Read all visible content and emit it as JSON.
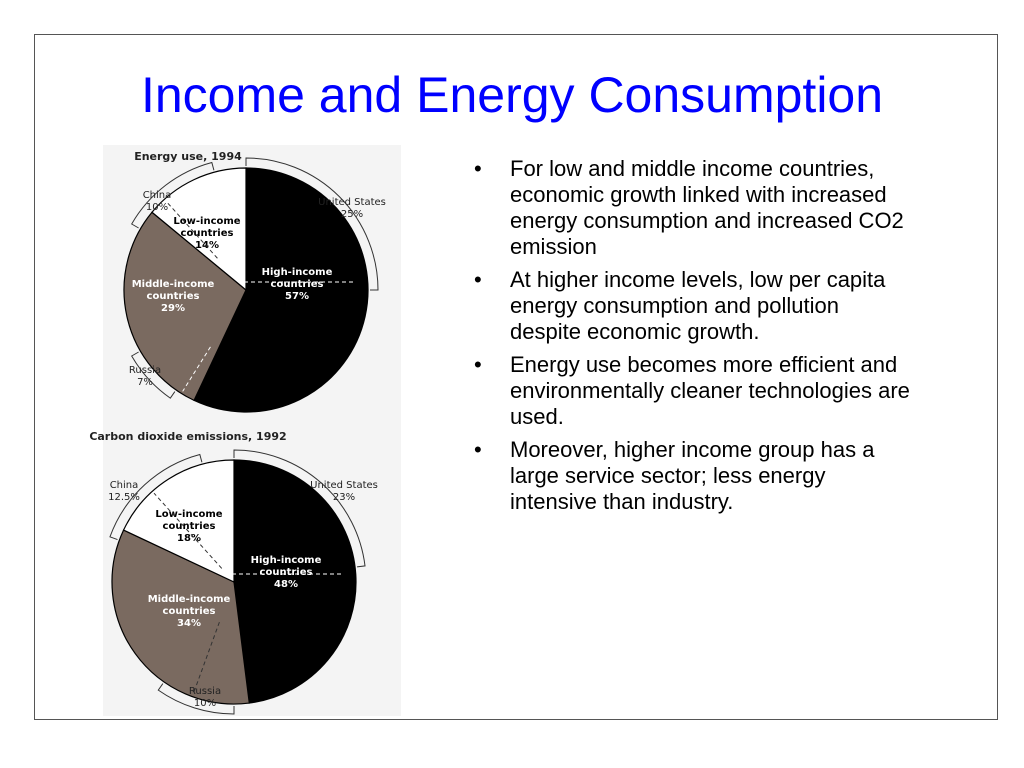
{
  "slide": {
    "title": "Income and Energy Consumption",
    "bullets": [
      "For low and middle income countries, economic growth linked with increased energy consumption and increased CO2 emission",
      "At higher income levels, low per capita energy consumption and pollution despite economic growth.",
      "Energy use becomes more efficient and environmentally cleaner technologies are used.",
      "Moreover, higher income group has a large service sector; less energy intensive than industry."
    ]
  },
  "colors": {
    "title": "#0000ff",
    "high_income": "#000000",
    "middle_income": "#7a6a60",
    "low_income": "#ffffff"
  },
  "chart_data": [
    {
      "type": "pie",
      "title": "Energy use, 1994",
      "slices": [
        {
          "label": "High-income countries",
          "lines": [
            "High-income",
            "countries"
          ],
          "pct_label": "57%",
          "value": 57,
          "color": "#000000",
          "text_color": "#ffffff"
        },
        {
          "label": "Middle-income countries",
          "lines": [
            "Middle-income",
            "countries"
          ],
          "pct_label": "29%",
          "value": 29,
          "color": "#7a6a60",
          "text_color": "#ffffff"
        },
        {
          "label": "Low-income countries",
          "lines": [
            "Low-income",
            "countries"
          ],
          "pct_label": "14%",
          "value": 14,
          "color": "#ffffff",
          "text_color": "#000000"
        }
      ],
      "callouts": [
        {
          "label": "United States",
          "pct_label": "25%"
        },
        {
          "label": "China",
          "pct_label": "10%"
        },
        {
          "label": "Russia",
          "pct_label": "7%"
        }
      ]
    },
    {
      "type": "pie",
      "title": "Carbon dioxide emissions, 1992",
      "slices": [
        {
          "label": "High-income countries",
          "lines": [
            "High-income",
            "countries"
          ],
          "pct_label": "48%",
          "value": 48,
          "color": "#000000",
          "text_color": "#ffffff"
        },
        {
          "label": "Middle-income countries",
          "lines": [
            "Middle-income",
            "countries"
          ],
          "pct_label": "34%",
          "value": 34,
          "color": "#7a6a60",
          "text_color": "#ffffff"
        },
        {
          "label": "Low-income countries",
          "lines": [
            "Low-income",
            "countries"
          ],
          "pct_label": "18%",
          "value": 18,
          "color": "#ffffff",
          "text_color": "#000000"
        }
      ],
      "callouts": [
        {
          "label": "United States",
          "pct_label": "23%"
        },
        {
          "label": "China",
          "pct_label": "12.5%"
        },
        {
          "label": "Russia",
          "pct_label": "10%"
        }
      ]
    }
  ]
}
